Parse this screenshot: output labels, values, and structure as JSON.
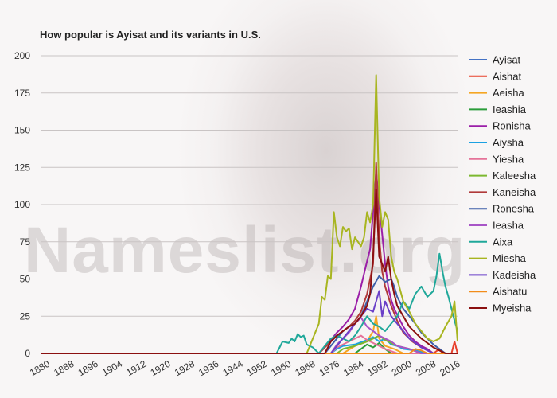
{
  "title": "How popular is Ayisat and its variants in U.S.",
  "watermark": "Nameslist.org",
  "chart_data": {
    "type": "line",
    "title": "How popular is Ayisat and its variants in U.S.",
    "xlim": [
      1880,
      2018
    ],
    "ylim": [
      0,
      200
    ],
    "x_ticks": [
      1880,
      1888,
      1896,
      1904,
      1912,
      1920,
      1928,
      1936,
      1944,
      1952,
      1960,
      1968,
      1976,
      1984,
      1992,
      2000,
      2008,
      2016
    ],
    "y_ticks": [
      0,
      25,
      50,
      75,
      100,
      125,
      150,
      175,
      200
    ],
    "grid": true,
    "legend_position": "right",
    "series": [
      {
        "name": "Ayisat",
        "color": "#4472c4",
        "points": [
          [
            1880,
            0
          ],
          [
            2018,
            0
          ]
        ]
      },
      {
        "name": "Aishat",
        "color": "#e8402a",
        "points": [
          [
            1880,
            0
          ],
          [
            2010,
            0
          ],
          [
            2012,
            3
          ],
          [
            2013,
            0
          ],
          [
            2016,
            0
          ],
          [
            2017,
            8
          ],
          [
            2018,
            0
          ]
        ]
      },
      {
        "name": "Aeisha",
        "color": "#f5a623",
        "points": [
          [
            1880,
            0
          ],
          [
            1980,
            0
          ],
          [
            1984,
            5
          ],
          [
            1988,
            8
          ],
          [
            1990,
            15
          ],
          [
            1991,
            25
          ],
          [
            1992,
            10
          ],
          [
            1994,
            5
          ],
          [
            1997,
            3
          ],
          [
            2000,
            0
          ],
          [
            2018,
            0
          ]
        ]
      },
      {
        "name": "Ieashia",
        "color": "#2a9d3a",
        "points": [
          [
            1880,
            0
          ],
          [
            1984,
            0
          ],
          [
            1986,
            3
          ],
          [
            1988,
            6
          ],
          [
            1990,
            4
          ],
          [
            1992,
            7
          ],
          [
            1994,
            3
          ],
          [
            1996,
            0
          ],
          [
            2018,
            0
          ]
        ]
      },
      {
        "name": "Ronisha",
        "color": "#9b1fa8",
        "points": [
          [
            1880,
            0
          ],
          [
            1972,
            0
          ],
          [
            1974,
            4
          ],
          [
            1976,
            9
          ],
          [
            1978,
            14
          ],
          [
            1980,
            18
          ],
          [
            1982,
            23
          ],
          [
            1984,
            30
          ],
          [
            1986,
            45
          ],
          [
            1988,
            62
          ],
          [
            1989,
            70
          ],
          [
            1990,
            95
          ],
          [
            1991,
            122
          ],
          [
            1992,
            100
          ],
          [
            1993,
            80
          ],
          [
            1994,
            60
          ],
          [
            1995,
            45
          ],
          [
            1996,
            36
          ],
          [
            1997,
            30
          ],
          [
            1998,
            26
          ],
          [
            2000,
            18
          ],
          [
            2002,
            12
          ],
          [
            2004,
            8
          ],
          [
            2006,
            5
          ],
          [
            2008,
            3
          ],
          [
            2010,
            0
          ],
          [
            2018,
            0
          ]
        ]
      },
      {
        "name": "Aiysha",
        "color": "#1ba1e2",
        "points": [
          [
            1880,
            0
          ],
          [
            1976,
            0
          ],
          [
            1978,
            3
          ],
          [
            1980,
            5
          ],
          [
            1984,
            6
          ],
          [
            1988,
            9
          ],
          [
            1990,
            11
          ],
          [
            1992,
            8
          ],
          [
            1994,
            10
          ],
          [
            1996,
            6
          ],
          [
            1998,
            5
          ],
          [
            2000,
            3
          ],
          [
            2004,
            2
          ],
          [
            2008,
            0
          ],
          [
            2018,
            0
          ]
        ]
      },
      {
        "name": "Yiesha",
        "color": "#e57399",
        "points": [
          [
            1880,
            0
          ],
          [
            1976,
            0
          ],
          [
            1978,
            4
          ],
          [
            1980,
            6
          ],
          [
            1982,
            8
          ],
          [
            1984,
            10
          ],
          [
            1986,
            12
          ],
          [
            1988,
            9
          ],
          [
            1990,
            7
          ],
          [
            1992,
            5
          ],
          [
            1994,
            3
          ],
          [
            1998,
            0
          ],
          [
            2018,
            0
          ]
        ]
      },
      {
        "name": "Kaleesha",
        "color": "#7cb82f",
        "points": [
          [
            1880,
            0
          ],
          [
            1978,
            0
          ],
          [
            1980,
            3
          ],
          [
            1984,
            5
          ],
          [
            1988,
            8
          ],
          [
            1990,
            10
          ],
          [
            1992,
            12
          ],
          [
            1994,
            9
          ],
          [
            1996,
            7
          ],
          [
            1998,
            5
          ],
          [
            2002,
            3
          ],
          [
            2006,
            0
          ],
          [
            2018,
            0
          ]
        ]
      },
      {
        "name": "Kaneisha",
        "color": "#b03a3a",
        "points": [
          [
            1880,
            0
          ],
          [
            1972,
            0
          ],
          [
            1974,
            4
          ],
          [
            1976,
            8
          ],
          [
            1978,
            12
          ],
          [
            1980,
            15
          ],
          [
            1982,
            18
          ],
          [
            1984,
            22
          ],
          [
            1986,
            28
          ],
          [
            1988,
            40
          ],
          [
            1990,
            60
          ],
          [
            1991,
            128
          ],
          [
            1992,
            78
          ],
          [
            1993,
            55
          ],
          [
            1994,
            45
          ],
          [
            1996,
            32
          ],
          [
            1998,
            22
          ],
          [
            2000,
            14
          ],
          [
            2003,
            8
          ],
          [
            2006,
            4
          ],
          [
            2010,
            0
          ],
          [
            2018,
            0
          ]
        ]
      },
      {
        "name": "Ronesha",
        "color": "#3d5fa8",
        "points": [
          [
            1880,
            0
          ],
          [
            1974,
            0
          ],
          [
            1976,
            5
          ],
          [
            1978,
            10
          ],
          [
            1980,
            15
          ],
          [
            1982,
            18
          ],
          [
            1984,
            20
          ],
          [
            1986,
            25
          ],
          [
            1988,
            35
          ],
          [
            1990,
            45
          ],
          [
            1992,
            52
          ],
          [
            1994,
            48
          ],
          [
            1996,
            50
          ],
          [
            1997,
            45
          ],
          [
            1998,
            38
          ],
          [
            2000,
            30
          ],
          [
            2002,
            25
          ],
          [
            2004,
            20
          ],
          [
            2006,
            14
          ],
          [
            2008,
            10
          ],
          [
            2010,
            6
          ],
          [
            2012,
            3
          ],
          [
            2014,
            0
          ],
          [
            2018,
            0
          ]
        ]
      },
      {
        "name": "Ieasha",
        "color": "#a855c7",
        "points": [
          [
            1880,
            0
          ],
          [
            1976,
            0
          ],
          [
            1978,
            6
          ],
          [
            1980,
            10
          ],
          [
            1982,
            14
          ],
          [
            1984,
            20
          ],
          [
            1986,
            24
          ],
          [
            1988,
            18
          ],
          [
            1990,
            15
          ],
          [
            1992,
            12
          ],
          [
            1994,
            10
          ],
          [
            1996,
            8
          ],
          [
            1998,
            5
          ],
          [
            2002,
            3
          ],
          [
            2006,
            0
          ],
          [
            2018,
            0
          ]
        ]
      },
      {
        "name": "Aixa",
        "color": "#20a89a",
        "points": [
          [
            1880,
            0
          ],
          [
            1958,
            0
          ],
          [
            1960,
            8
          ],
          [
            1962,
            7
          ],
          [
            1963,
            10
          ],
          [
            1964,
            8
          ],
          [
            1965,
            13
          ],
          [
            1966,
            11
          ],
          [
            1967,
            12
          ],
          [
            1968,
            6
          ],
          [
            1970,
            4
          ],
          [
            1972,
            0
          ],
          [
            1974,
            5
          ],
          [
            1976,
            10
          ],
          [
            1978,
            12
          ],
          [
            1980,
            10
          ],
          [
            1982,
            8
          ],
          [
            1984,
            12
          ],
          [
            1986,
            18
          ],
          [
            1988,
            25
          ],
          [
            1990,
            20
          ],
          [
            1992,
            18
          ],
          [
            1994,
            15
          ],
          [
            1996,
            20
          ],
          [
            1998,
            25
          ],
          [
            2000,
            35
          ],
          [
            2002,
            30
          ],
          [
            2004,
            40
          ],
          [
            2006,
            45
          ],
          [
            2008,
            38
          ],
          [
            2010,
            42
          ],
          [
            2011,
            52
          ],
          [
            2012,
            67
          ],
          [
            2013,
            55
          ],
          [
            2014,
            45
          ],
          [
            2015,
            38
          ],
          [
            2016,
            30
          ],
          [
            2017,
            22
          ],
          [
            2018,
            15
          ]
        ]
      },
      {
        "name": "Miesha",
        "color": "#a8b520",
        "points": [
          [
            1880,
            0
          ],
          [
            1968,
            0
          ],
          [
            1970,
            10
          ],
          [
            1972,
            20
          ],
          [
            1973,
            38
          ],
          [
            1974,
            36
          ],
          [
            1975,
            52
          ],
          [
            1976,
            50
          ],
          [
            1977,
            95
          ],
          [
            1978,
            78
          ],
          [
            1979,
            72
          ],
          [
            1980,
            85
          ],
          [
            1981,
            82
          ],
          [
            1982,
            84
          ],
          [
            1983,
            70
          ],
          [
            1984,
            78
          ],
          [
            1985,
            75
          ],
          [
            1986,
            72
          ],
          [
            1987,
            78
          ],
          [
            1988,
            95
          ],
          [
            1989,
            88
          ],
          [
            1990,
            100
          ],
          [
            1991,
            187
          ],
          [
            1992,
            105
          ],
          [
            1993,
            85
          ],
          [
            1994,
            95
          ],
          [
            1995,
            90
          ],
          [
            1996,
            65
          ],
          [
            1997,
            55
          ],
          [
            1998,
            50
          ],
          [
            2000,
            35
          ],
          [
            2002,
            28
          ],
          [
            2004,
            20
          ],
          [
            2006,
            15
          ],
          [
            2008,
            10
          ],
          [
            2010,
            8
          ],
          [
            2012,
            10
          ],
          [
            2014,
            18
          ],
          [
            2016,
            25
          ],
          [
            2017,
            35
          ],
          [
            2018,
            8
          ]
        ]
      },
      {
        "name": "Kadeisha",
        "color": "#6a3fc8",
        "points": [
          [
            1880,
            0
          ],
          [
            1976,
            0
          ],
          [
            1978,
            5
          ],
          [
            1980,
            10
          ],
          [
            1982,
            15
          ],
          [
            1984,
            20
          ],
          [
            1986,
            25
          ],
          [
            1988,
            30
          ],
          [
            1990,
            28
          ],
          [
            1992,
            42
          ],
          [
            1993,
            25
          ],
          [
            1994,
            35
          ],
          [
            1996,
            25
          ],
          [
            1998,
            20
          ],
          [
            2000,
            15
          ],
          [
            2002,
            10
          ],
          [
            2004,
            7
          ],
          [
            2006,
            4
          ],
          [
            2010,
            0
          ],
          [
            2018,
            0
          ]
        ]
      },
      {
        "name": "Aishatu",
        "color": "#f28c1a",
        "points": [
          [
            1880,
            0
          ],
          [
            2002,
            0
          ],
          [
            2004,
            3
          ],
          [
            2006,
            2
          ],
          [
            2008,
            0
          ],
          [
            2018,
            0
          ]
        ]
      },
      {
        "name": "Myeisha",
        "color": "#8b1010",
        "points": [
          [
            1880,
            0
          ],
          [
            1974,
            0
          ],
          [
            1976,
            8
          ],
          [
            1978,
            12
          ],
          [
            1980,
            15
          ],
          [
            1982,
            18
          ],
          [
            1984,
            20
          ],
          [
            1986,
            25
          ],
          [
            1988,
            32
          ],
          [
            1989,
            40
          ],
          [
            1990,
            65
          ],
          [
            1991,
            110
          ],
          [
            1992,
            65
          ],
          [
            1993,
            60
          ],
          [
            1994,
            55
          ],
          [
            1995,
            65
          ],
          [
            1996,
            50
          ],
          [
            1997,
            40
          ],
          [
            1998,
            32
          ],
          [
            2000,
            25
          ],
          [
            2002,
            18
          ],
          [
            2004,
            14
          ],
          [
            2006,
            10
          ],
          [
            2008,
            7
          ],
          [
            2010,
            4
          ],
          [
            2012,
            2
          ],
          [
            2014,
            0
          ],
          [
            2018,
            0
          ]
        ]
      }
    ]
  }
}
